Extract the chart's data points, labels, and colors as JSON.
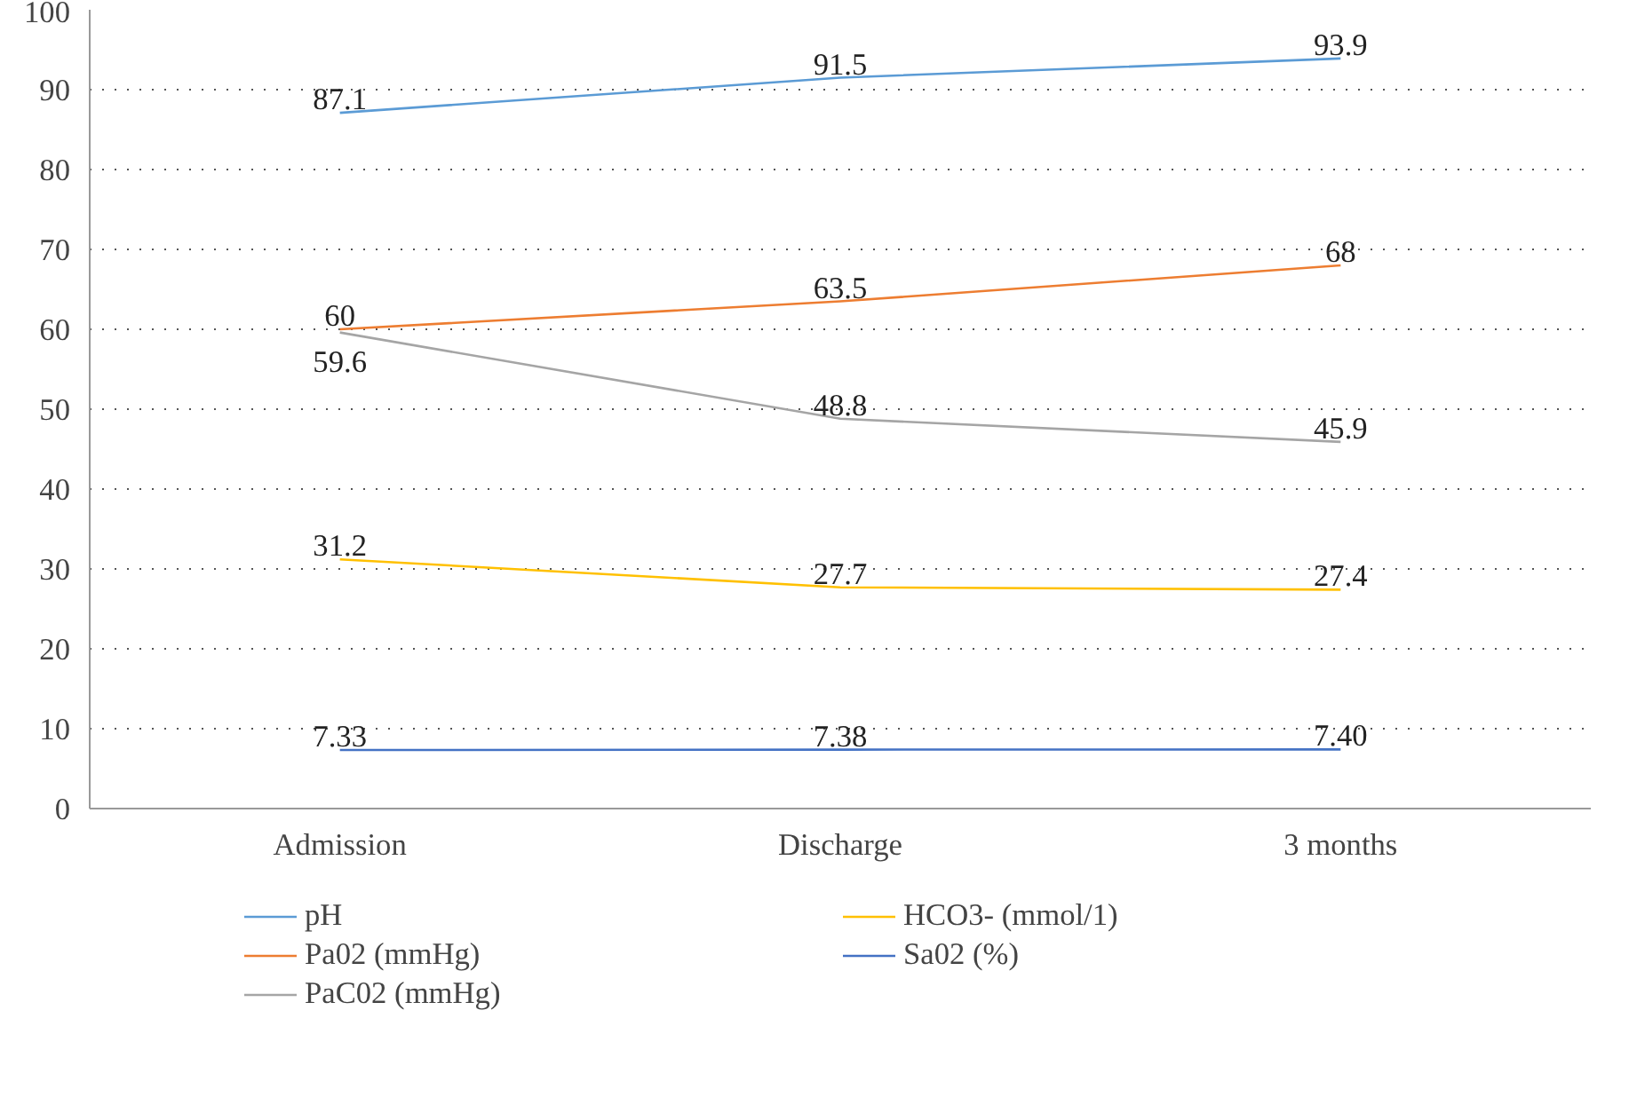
{
  "chart_data": {
    "type": "line",
    "categories": [
      "Admission",
      "Discharge",
      "3 months"
    ],
    "series": [
      {
        "name": "pH",
        "color": "#5b9bd5",
        "values": [
          87.1,
          91.5,
          93.9
        ],
        "value_labels": [
          "87.1",
          "91.5",
          "93.9"
        ]
      },
      {
        "name": "Pa02 (mmHg)",
        "color": "#ed7d31",
        "values": [
          60,
          63.5,
          68
        ],
        "value_labels": [
          "60",
          "63.5",
          "68"
        ]
      },
      {
        "name": "PaC02 (mmHg)",
        "color": "#a5a5a5",
        "values": [
          59.6,
          48.8,
          45.9
        ],
        "value_labels": [
          "59.6",
          "48.8",
          "45.9"
        ]
      },
      {
        "name": "HCO3- (mmol/1)",
        "color": "#ffc000",
        "values": [
          31.2,
          27.7,
          27.4
        ],
        "value_labels": [
          "31.2",
          "27.7",
          "27.4"
        ]
      },
      {
        "name": "Sa02 (%)",
        "color": "#4472c4",
        "values": [
          7.33,
          7.38,
          7.4
        ],
        "value_labels": [
          "7.33",
          "7.38",
          "7.40"
        ]
      }
    ],
    "ylim": [
      0,
      100
    ],
    "yticks": [
      0,
      10,
      20,
      30,
      40,
      50,
      60,
      70,
      80,
      90,
      100
    ],
    "grid": "y",
    "legend": "bottom",
    "marker": "none",
    "line_style": "solid"
  }
}
